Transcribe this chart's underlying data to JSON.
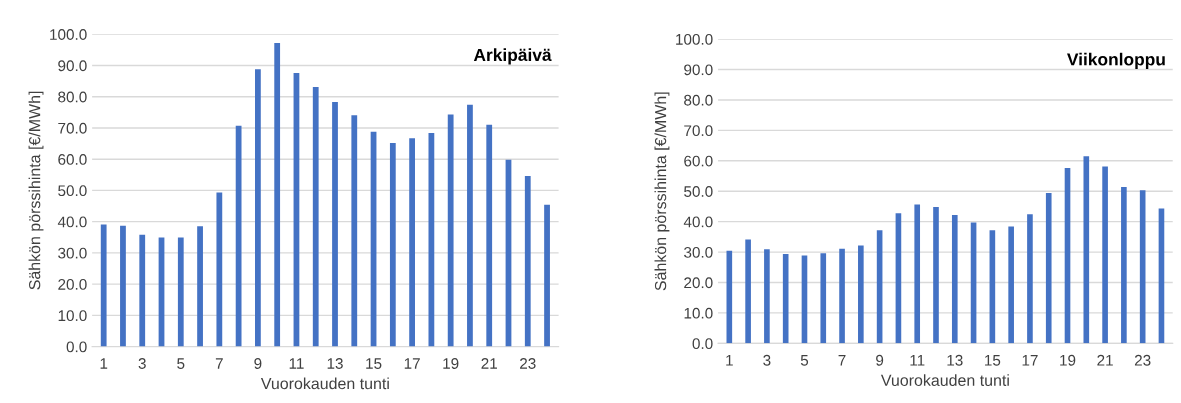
{
  "chart_data": [
    {
      "type": "bar",
      "annotations": [
        "Arkipäivä"
      ],
      "xlabel": "Vuorokauden tunti",
      "ylabel": "Sähkön pörssihinta [€/MWh]",
      "categories": [
        "1",
        null,
        "3",
        null,
        "5",
        null,
        "7",
        null,
        "9",
        null,
        "11",
        null,
        "13",
        null,
        "15",
        null,
        "17",
        null,
        "19",
        null,
        "21",
        null,
        "23",
        null
      ],
      "values": [
        39.1,
        38.7,
        35.8,
        34.9,
        34.9,
        38.5,
        49.3,
        70.7,
        88.8,
        97.2,
        87.6,
        83.1,
        78.3,
        74.1,
        68.8,
        65.2,
        66.7,
        68.4,
        74.3,
        77.4,
        71.0,
        59.8,
        54.6,
        45.4
      ],
      "color": "#4472c4",
      "ylim": [
        0,
        100
      ],
      "yticks": [
        {
          "value": 0,
          "label": "0.0"
        },
        {
          "value": 10,
          "label": "10.0"
        },
        {
          "value": 20,
          "label": "20.0"
        },
        {
          "value": 30,
          "label": "30.0"
        },
        {
          "value": 40,
          "label": "40.0"
        },
        {
          "value": 50,
          "label": "50.0"
        },
        {
          "value": 60,
          "label": "60.0"
        },
        {
          "value": 70,
          "label": "70.0"
        },
        {
          "value": 80,
          "label": "80.0"
        },
        {
          "value": 90,
          "label": "90.0"
        },
        {
          "value": 100,
          "label": "100.0"
        }
      ],
      "grid": "y",
      "legend": false
    },
    {
      "type": "bar",
      "annotations": [
        "Viikonloppu"
      ],
      "xlabel": "Vuorokauden tunti",
      "ylabel": "Sähkön pörssihinta [€/MWh]",
      "categories": [
        "1",
        null,
        "3",
        null,
        "5",
        null,
        "7",
        null,
        "9",
        null,
        "11",
        null,
        "13",
        null,
        "15",
        null,
        "17",
        null,
        "19",
        null,
        "21",
        null,
        "23",
        null
      ],
      "values": [
        30.4,
        34.1,
        30.9,
        29.4,
        28.9,
        29.6,
        31.1,
        32.2,
        37.2,
        42.8,
        45.6,
        44.8,
        42.2,
        39.7,
        37.2,
        38.4,
        42.4,
        49.4,
        57.6,
        61.5,
        58.1,
        51.4,
        50.3,
        44.3
      ],
      "color": "#4472c4",
      "ylim": [
        0,
        100
      ],
      "yticks": [
        {
          "value": 0,
          "label": "0.0"
        },
        {
          "value": 10,
          "label": "10.0"
        },
        {
          "value": 20,
          "label": "20.0"
        },
        {
          "value": 30,
          "label": "30.0"
        },
        {
          "value": 40,
          "label": "40.0"
        },
        {
          "value": 50,
          "label": "50.0"
        },
        {
          "value": 60,
          "label": "60.0"
        },
        {
          "value": 70,
          "label": "70.0"
        },
        {
          "value": 80,
          "label": "80.0"
        },
        {
          "value": 90,
          "label": "90.0"
        },
        {
          "value": 100,
          "label": "100.0"
        }
      ],
      "grid": "y",
      "legend": false
    }
  ]
}
